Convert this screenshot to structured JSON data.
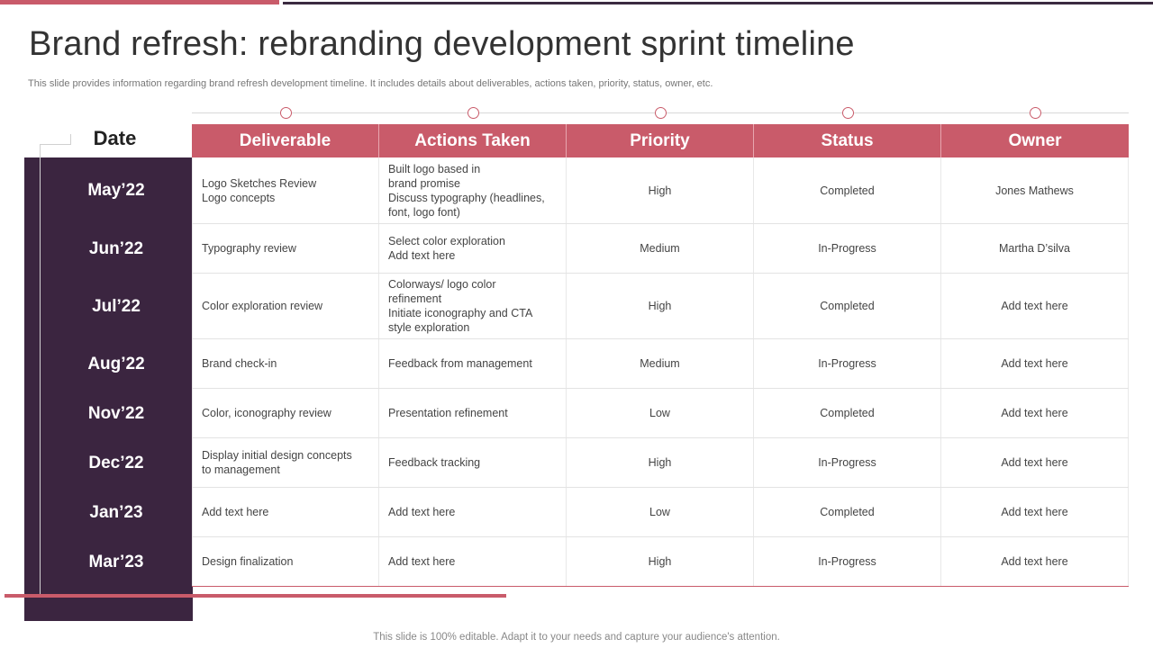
{
  "title": "Brand refresh: rebranding development sprint timeline",
  "subtitle": "This slide provides information regarding brand refresh development timeline. It includes details about deliverables, actions taken, priority, status, owner, etc.",
  "date_header": "Date",
  "columns": [
    "Deliverable",
    "Actions Taken",
    "Priority",
    "Status",
    "Owner"
  ],
  "rows": [
    {
      "date": "May’22",
      "deliverable": [
        "Logo Sketches Review",
        "Logo concepts"
      ],
      "actions": [
        "Built logo based in",
        "brand promise",
        "Discuss typography (headlines,",
        "font, logo font)"
      ],
      "priority": "High",
      "status": "Completed",
      "owner": "Jones Mathews"
    },
    {
      "date": "Jun’22",
      "deliverable": [
        "Typography  review"
      ],
      "actions": [
        "Select color exploration",
        "Add text here"
      ],
      "priority": "Medium",
      "status": "In-Progress",
      "owner": "Martha D’silva"
    },
    {
      "date": "Jul’22",
      "deliverable": [
        "Color exploration  review"
      ],
      "actions": [
        "Colorways/ logo color",
        "refinement",
        "Initiate iconography and CTA",
        "style exploration"
      ],
      "priority": "High",
      "status": "Completed",
      "owner": "Add text here"
    },
    {
      "date": "Aug’22",
      "deliverable": [
        "Brand check-in"
      ],
      "actions": [
        "Feedback from management"
      ],
      "priority": "Medium",
      "status": "In-Progress",
      "owner": "Add text here"
    },
    {
      "date": "Nov’22",
      "deliverable": [
        "Color, iconography review"
      ],
      "actions": [
        "Presentation refinement"
      ],
      "priority": "Low",
      "status": "Completed",
      "owner": "Add text here"
    },
    {
      "date": "Dec’22",
      "deliverable": [
        "Display initial design concepts",
        "to management"
      ],
      "actions": [
        "Feedback tracking"
      ],
      "priority": "High",
      "status": "In-Progress",
      "owner": "Add text here"
    },
    {
      "date": "Jan’23",
      "deliverable": [
        "Add text here"
      ],
      "actions": [
        "Add text here"
      ],
      "priority": "Low",
      "status": "Completed",
      "owner": "Add text here"
    },
    {
      "date": "Mar’23",
      "deliverable": [
        "Design finalization"
      ],
      "actions": [
        "Add text here"
      ],
      "priority": "High",
      "status": "In-Progress",
      "owner": "Add text here"
    }
  ],
  "footer": "This slide is 100% editable. Adapt it to your needs and capture your audience's attention.",
  "colors": {
    "accent": "#c95b6a",
    "dark": "#3b2540"
  }
}
